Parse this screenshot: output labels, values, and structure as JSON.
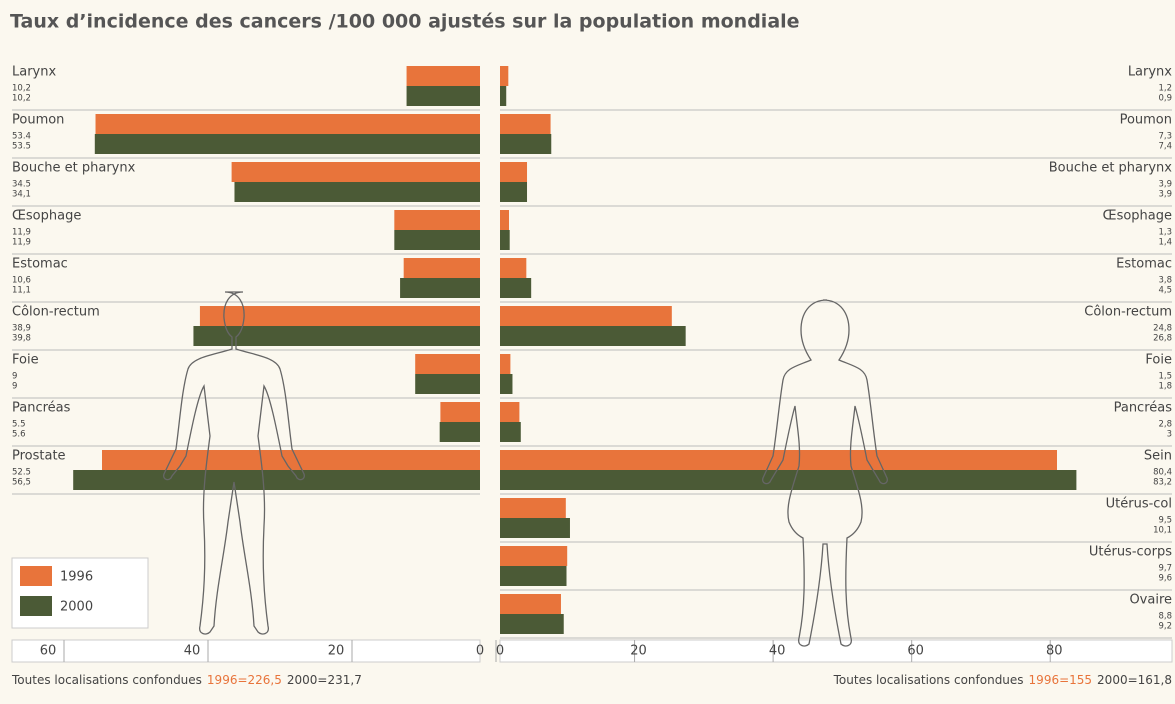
{
  "title": "Taux d’incidence des cancers /100 000 ajustés sur la population mondiale",
  "chart_data": [
    {
      "type": "bar",
      "orientation": "horizontal",
      "x_reversed": true,
      "categories": [
        "Larynx",
        "Poumon",
        "Bouche et pharynx",
        "Œsophage",
        "Estomac",
        "Côlon-rectum",
        "Foie",
        "Pancréas",
        "Prostate"
      ],
      "series": [
        {
          "name": "1996",
          "color": "#e8743b",
          "values": [
            10.2,
            53.4,
            34.5,
            11.9,
            10.6,
            38.9,
            9,
            5.5,
            52.5
          ],
          "value_labels": [
            "10,2",
            "53.4",
            "34.5",
            "11,9",
            "10,6",
            "38,9",
            "9",
            "5.5",
            "52.5"
          ]
        },
        {
          "name": "2000",
          "color": "#4b5a36",
          "values": [
            10.2,
            53.5,
            34.1,
            11.9,
            11.1,
            39.8,
            9,
            5.6,
            56.5
          ],
          "value_labels": [
            "10,2",
            "53.5",
            "34,1",
            "11,9",
            "11,1",
            "39,8",
            "9",
            "5.6",
            "56,5"
          ]
        }
      ],
      "xlim": [
        0,
        65
      ],
      "xticks": [
        0,
        20,
        40,
        60
      ],
      "legend": "bottom-left",
      "note": "Toutes localisations confondues",
      "note_1996": "1996=226,5",
      "note_2000": "2000=231,7"
    },
    {
      "type": "bar",
      "orientation": "horizontal",
      "x_reversed": false,
      "categories": [
        "Larynx",
        "Poumon",
        "Bouche et pharynx",
        "Œsophage",
        "Estomac",
        "Côlon-rectum",
        "Foie",
        "Pancréas",
        "Sein",
        "Utérus-col",
        "Utérus-corps",
        "Ovaire"
      ],
      "series": [
        {
          "name": "1996",
          "color": "#e8743b",
          "values": [
            1.2,
            7.3,
            3.9,
            1.3,
            3.8,
            24.8,
            1.5,
            2.8,
            80.4,
            9.5,
            9.7,
            8.8
          ],
          "value_labels": [
            "1,2",
            "7,3",
            "3,9",
            "1,3",
            "3,8",
            "24,8",
            "1,5",
            "2,8",
            "80,4",
            "9,5",
            "9,7",
            "8,8"
          ]
        },
        {
          "name": "2000",
          "color": "#4b5a36",
          "values": [
            0.9,
            7.4,
            3.9,
            1.4,
            4.5,
            26.8,
            1.8,
            3,
            83.2,
            10.1,
            9.6,
            9.2
          ],
          "value_labels": [
            "0,9",
            "7,4",
            "3,9",
            "1,4",
            "4,5",
            "26,8",
            "1,8",
            "3",
            "83,2",
            "10,1",
            "9,6",
            "9,2"
          ]
        }
      ],
      "xlim": [
        0,
        97
      ],
      "xticks": [
        0,
        20,
        40,
        60,
        80
      ],
      "note": "Toutes localisations confondues",
      "note_1996": "1996=155",
      "note_2000": "2000=161,8"
    }
  ]
}
